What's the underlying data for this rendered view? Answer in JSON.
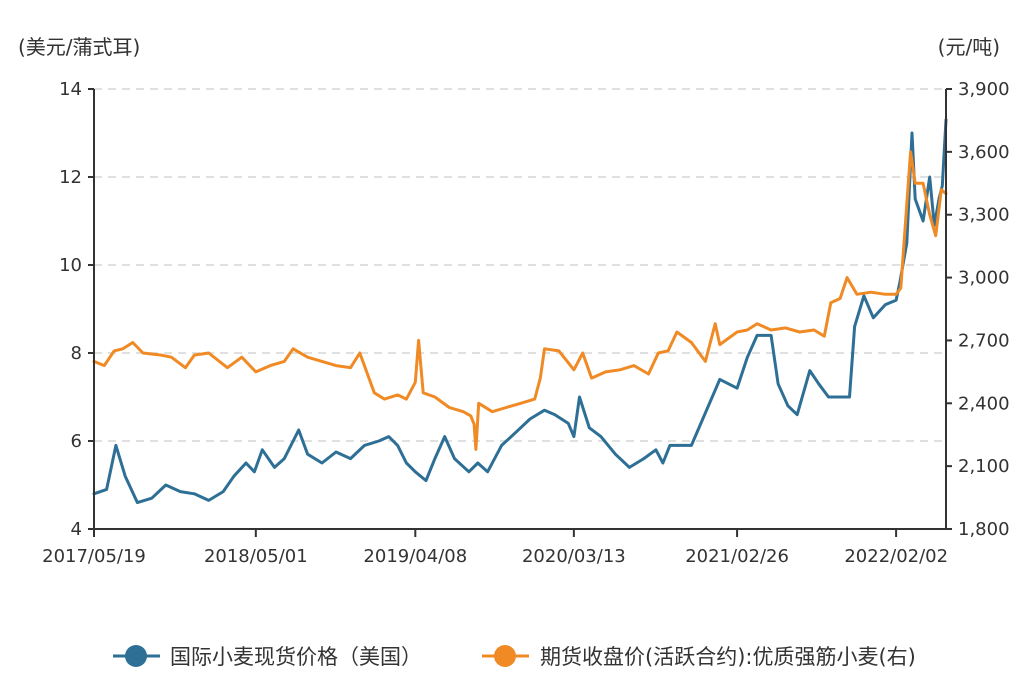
{
  "chart_data": {
    "type": "line",
    "title": "",
    "left_axis": {
      "unit": "(美元/蒲式耳)",
      "range": [
        4,
        14
      ],
      "ticks": [
        "14",
        "12",
        "10",
        "8",
        "6",
        "4"
      ],
      "tick_values": [
        14,
        12,
        10,
        8,
        6,
        4
      ]
    },
    "right_axis": {
      "unit": "(元/吨)",
      "range": [
        1800,
        3900
      ],
      "ticks": [
        "3,900",
        "3,600",
        "3,300",
        "3,000",
        "2,700",
        "2,400",
        "2,100",
        "1,800"
      ],
      "tick_values": [
        3900,
        3600,
        3300,
        3000,
        2700,
        2400,
        2100,
        1800
      ]
    },
    "x_axis": {
      "start": "2017-05-19",
      "end": "2022-05-20",
      "ticks": [
        "2017/05/19",
        "2018/05/01",
        "2019/04/08",
        "2020/03/13",
        "2021/02/26",
        "2022/02/02"
      ],
      "tick_dates": [
        "2017-05-19",
        "2018-05-01",
        "2019-04-08",
        "2020-03-13",
        "2021-02-26",
        "2022-02-02"
      ]
    },
    "grid": "horizontal-dashed",
    "legend_position": "bottom",
    "series": [
      {
        "name": "国际小麦现货价格（美国）",
        "axis": "left",
        "color": "#2e6f96",
        "points": [
          [
            "2017-05-19",
            4.8
          ],
          [
            "2017-06-15",
            4.9
          ],
          [
            "2017-07-05",
            5.9
          ],
          [
            "2017-07-25",
            5.2
          ],
          [
            "2017-08-20",
            4.6
          ],
          [
            "2017-09-20",
            4.7
          ],
          [
            "2017-10-20",
            5.0
          ],
          [
            "2017-11-20",
            4.85
          ],
          [
            "2017-12-20",
            4.8
          ],
          [
            "2018-01-20",
            4.65
          ],
          [
            "2018-02-20",
            4.85
          ],
          [
            "2018-03-15",
            5.2
          ],
          [
            "2018-04-10",
            5.5
          ],
          [
            "2018-04-28",
            5.3
          ],
          [
            "2018-05-15",
            5.8
          ],
          [
            "2018-06-10",
            5.4
          ],
          [
            "2018-07-01",
            5.6
          ],
          [
            "2018-08-01",
            6.25
          ],
          [
            "2018-08-20",
            5.7
          ],
          [
            "2018-09-20",
            5.5
          ],
          [
            "2018-10-20",
            5.75
          ],
          [
            "2018-11-20",
            5.6
          ],
          [
            "2018-12-20",
            5.9
          ],
          [
            "2019-01-20",
            6.0
          ],
          [
            "2019-02-10",
            6.1
          ],
          [
            "2019-03-01",
            5.9
          ],
          [
            "2019-03-20",
            5.5
          ],
          [
            "2019-04-08",
            5.3
          ],
          [
            "2019-05-01",
            5.1
          ],
          [
            "2019-05-20",
            5.6
          ],
          [
            "2019-06-10",
            6.1
          ],
          [
            "2019-07-01",
            5.6
          ],
          [
            "2019-08-01",
            5.3
          ],
          [
            "2019-08-20",
            5.5
          ],
          [
            "2019-09-10",
            5.3
          ],
          [
            "2019-10-10",
            5.9
          ],
          [
            "2019-11-10",
            6.2
          ],
          [
            "2019-12-10",
            6.5
          ],
          [
            "2020-01-10",
            6.7
          ],
          [
            "2020-02-01",
            6.6
          ],
          [
            "2020-03-01",
            6.4
          ],
          [
            "2020-03-13",
            6.1
          ],
          [
            "2020-03-25",
            7.0
          ],
          [
            "2020-04-15",
            6.3
          ],
          [
            "2020-05-10",
            6.1
          ],
          [
            "2020-06-10",
            5.7
          ],
          [
            "2020-07-10",
            5.4
          ],
          [
            "2020-08-10",
            5.6
          ],
          [
            "2020-09-05",
            5.8
          ],
          [
            "2020-09-20",
            5.5
          ],
          [
            "2020-10-05",
            5.9
          ],
          [
            "2020-10-20",
            5.9
          ],
          [
            "2020-11-20",
            5.9
          ],
          [
            "2021-01-20",
            7.4
          ],
          [
            "2021-02-26",
            7.2
          ],
          [
            "2021-03-20",
            7.9
          ],
          [
            "2021-04-10",
            8.4
          ],
          [
            "2021-05-10",
            8.4
          ],
          [
            "2021-05-25",
            7.3
          ],
          [
            "2021-06-15",
            6.8
          ],
          [
            "2021-07-05",
            6.6
          ],
          [
            "2021-08-01",
            7.6
          ],
          [
            "2021-08-20",
            7.3
          ],
          [
            "2021-09-10",
            7.0
          ],
          [
            "2021-09-20",
            7.0
          ],
          [
            "2021-10-25",
            7.0
          ],
          [
            "2021-11-05",
            8.6
          ],
          [
            "2021-11-25",
            9.3
          ],
          [
            "2021-12-15",
            8.8
          ],
          [
            "2022-01-10",
            9.1
          ],
          [
            "2022-02-02",
            9.2
          ],
          [
            "2022-02-10",
            9.6
          ],
          [
            "2022-02-25",
            10.5
          ],
          [
            "2022-03-08",
            13.0
          ],
          [
            "2022-03-15",
            11.5
          ],
          [
            "2022-04-01",
            11.0
          ],
          [
            "2022-04-15",
            12.0
          ],
          [
            "2022-04-25",
            10.9
          ],
          [
            "2022-05-05",
            11.5
          ],
          [
            "2022-05-12",
            11.8
          ],
          [
            "2022-05-20",
            13.3
          ]
        ]
      },
      {
        "name": "期货收盘价(活跃合约):优质强筋小麦(右)",
        "axis": "right",
        "color": "#f08a24",
        "points": [
          [
            "2017-05-19",
            2600
          ],
          [
            "2017-06-10",
            2580
          ],
          [
            "2017-07-01",
            2650
          ],
          [
            "2017-07-20",
            2660
          ],
          [
            "2017-08-10",
            2690
          ],
          [
            "2017-09-01",
            2640
          ],
          [
            "2017-10-10",
            2630
          ],
          [
            "2017-11-01",
            2620
          ],
          [
            "2017-12-01",
            2570
          ],
          [
            "2017-12-20",
            2630
          ],
          [
            "2018-01-20",
            2640
          ],
          [
            "2018-03-01",
            2570
          ],
          [
            "2018-04-01",
            2620
          ],
          [
            "2018-05-01",
            2550
          ],
          [
            "2018-06-01",
            2580
          ],
          [
            "2018-07-01",
            2600
          ],
          [
            "2018-07-20",
            2660
          ],
          [
            "2018-08-20",
            2620
          ],
          [
            "2018-09-20",
            2600
          ],
          [
            "2018-10-20",
            2580
          ],
          [
            "2018-11-20",
            2570
          ],
          [
            "2018-12-10",
            2640
          ],
          [
            "2019-01-10",
            2450
          ],
          [
            "2019-02-01",
            2420
          ],
          [
            "2019-03-01",
            2440
          ],
          [
            "2019-03-20",
            2420
          ],
          [
            "2019-04-08",
            2500
          ],
          [
            "2019-04-15",
            2700
          ],
          [
            "2019-04-25",
            2450
          ],
          [
            "2019-05-20",
            2430
          ],
          [
            "2019-06-20",
            2380
          ],
          [
            "2019-07-20",
            2360
          ],
          [
            "2019-08-05",
            2340
          ],
          [
            "2019-08-12",
            2300
          ],
          [
            "2019-08-16",
            2180
          ],
          [
            "2019-08-22",
            2400
          ],
          [
            "2019-09-20",
            2360
          ],
          [
            "2019-10-20",
            2380
          ],
          [
            "2019-11-20",
            2400
          ],
          [
            "2019-12-20",
            2420
          ],
          [
            "2020-01-01",
            2520
          ],
          [
            "2020-01-10",
            2660
          ],
          [
            "2020-02-10",
            2650
          ],
          [
            "2020-03-13",
            2560
          ],
          [
            "2020-04-01",
            2640
          ],
          [
            "2020-04-20",
            2520
          ],
          [
            "2020-05-20",
            2550
          ],
          [
            "2020-06-20",
            2560
          ],
          [
            "2020-07-20",
            2580
          ],
          [
            "2020-08-20",
            2540
          ],
          [
            "2020-09-10",
            2640
          ],
          [
            "2020-10-01",
            2650
          ],
          [
            "2020-10-20",
            2740
          ],
          [
            "2020-11-20",
            2690
          ],
          [
            "2020-12-20",
            2600
          ],
          [
            "2021-01-10",
            2780
          ],
          [
            "2021-01-20",
            2680
          ],
          [
            "2021-02-26",
            2740
          ],
          [
            "2021-03-20",
            2750
          ],
          [
            "2021-04-10",
            2780
          ],
          [
            "2021-05-10",
            2750
          ],
          [
            "2021-06-10",
            2760
          ],
          [
            "2021-07-10",
            2740
          ],
          [
            "2021-08-10",
            2750
          ],
          [
            "2021-09-01",
            2720
          ],
          [
            "2021-09-15",
            2880
          ],
          [
            "2021-10-05",
            2900
          ],
          [
            "2021-10-20",
            3000
          ],
          [
            "2021-11-10",
            2920
          ],
          [
            "2021-12-10",
            2930
          ],
          [
            "2022-01-10",
            2920
          ],
          [
            "2022-02-02",
            2920
          ],
          [
            "2022-02-12",
            2950
          ],
          [
            "2022-02-25",
            3350
          ],
          [
            "2022-03-05",
            3600
          ],
          [
            "2022-03-15",
            3450
          ],
          [
            "2022-04-01",
            3450
          ],
          [
            "2022-04-15",
            3300
          ],
          [
            "2022-04-28",
            3200
          ],
          [
            "2022-05-10",
            3420
          ],
          [
            "2022-05-20",
            3400
          ]
        ]
      }
    ]
  }
}
